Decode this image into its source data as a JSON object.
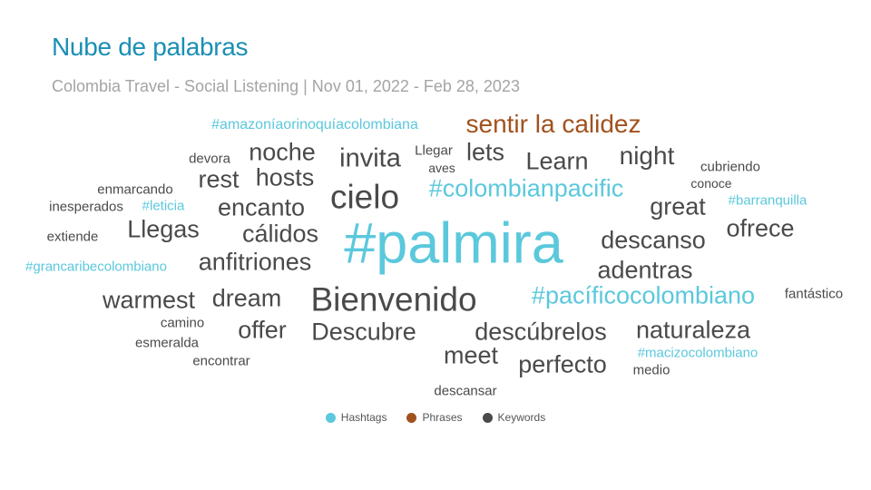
{
  "header": {
    "title": "Nube de palabras",
    "subtitle": "Colombia Travel - Social Listening | Nov 01, 2022 - Feb 28, 2023"
  },
  "colors": {
    "Hashtags": "#5bc8dc",
    "Phrases": "#a0521e",
    "Keywords": "#4a4a4a"
  },
  "legend": [
    {
      "label": "Hashtags",
      "category": "Hashtags"
    },
    {
      "label": "Phrases",
      "category": "Phrases"
    },
    {
      "label": "Keywords",
      "category": "Keywords"
    }
  ],
  "chart_data": {
    "type": "wordcloud",
    "title": "Nube de palabras",
    "subtitle": "Colombia Travel - Social Listening | Nov 01, 2022 - Feb 28, 2023",
    "legend_position": "bottom",
    "words": [
      {
        "text": "#amazoníaorinoquíacolombiana",
        "category": "Hashtags"
      },
      {
        "text": "sentir la calidez",
        "category": "Phrases"
      },
      {
        "text": "devora",
        "category": "Keywords"
      },
      {
        "text": "noche",
        "category": "Keywords"
      },
      {
        "text": "invita",
        "category": "Keywords"
      },
      {
        "text": "Llegar",
        "category": "Keywords"
      },
      {
        "text": "aves",
        "category": "Keywords"
      },
      {
        "text": "lets",
        "category": "Keywords"
      },
      {
        "text": "Learn",
        "category": "Keywords"
      },
      {
        "text": "night",
        "category": "Keywords"
      },
      {
        "text": "cubriendo",
        "category": "Keywords"
      },
      {
        "text": "conoce",
        "category": "Keywords"
      },
      {
        "text": "rest",
        "category": "Keywords"
      },
      {
        "text": "hosts",
        "category": "Keywords"
      },
      {
        "text": "enmarcando",
        "category": "Keywords"
      },
      {
        "text": "cielo",
        "category": "Keywords"
      },
      {
        "text": "#colombianpacific",
        "category": "Hashtags"
      },
      {
        "text": "inesperados",
        "category": "Keywords"
      },
      {
        "text": "#leticia",
        "category": "Hashtags"
      },
      {
        "text": "encanto",
        "category": "Keywords"
      },
      {
        "text": "great",
        "category": "Keywords"
      },
      {
        "text": "#barranquilla",
        "category": "Hashtags"
      },
      {
        "text": "Llegas",
        "category": "Keywords"
      },
      {
        "text": "cálidos",
        "category": "Keywords"
      },
      {
        "text": "#palmira",
        "category": "Hashtags"
      },
      {
        "text": "ofrece",
        "category": "Keywords"
      },
      {
        "text": "extiende",
        "category": "Keywords"
      },
      {
        "text": "descanso",
        "category": "Keywords"
      },
      {
        "text": "#grancaribecolombiano",
        "category": "Hashtags"
      },
      {
        "text": "anfitriones",
        "category": "Keywords"
      },
      {
        "text": "adentras",
        "category": "Keywords"
      },
      {
        "text": "warmest",
        "category": "Keywords"
      },
      {
        "text": "dream",
        "category": "Keywords"
      },
      {
        "text": "Bienvenido",
        "category": "Keywords"
      },
      {
        "text": "#pacíficocolombiano",
        "category": "Hashtags"
      },
      {
        "text": "fantástico",
        "category": "Keywords"
      },
      {
        "text": "camino",
        "category": "Keywords"
      },
      {
        "text": "offer",
        "category": "Keywords"
      },
      {
        "text": "Descubre",
        "category": "Keywords"
      },
      {
        "text": "descúbrelos",
        "category": "Keywords"
      },
      {
        "text": "naturaleza",
        "category": "Keywords"
      },
      {
        "text": "esmeralda",
        "category": "Keywords"
      },
      {
        "text": "meet",
        "category": "Keywords"
      },
      {
        "text": "#macizocolombiano",
        "category": "Hashtags"
      },
      {
        "text": "encontrar",
        "category": "Keywords"
      },
      {
        "text": "perfecto",
        "category": "Keywords"
      },
      {
        "text": "medio",
        "category": "Keywords"
      },
      {
        "text": "descansar",
        "category": "Keywords"
      }
    ]
  }
}
